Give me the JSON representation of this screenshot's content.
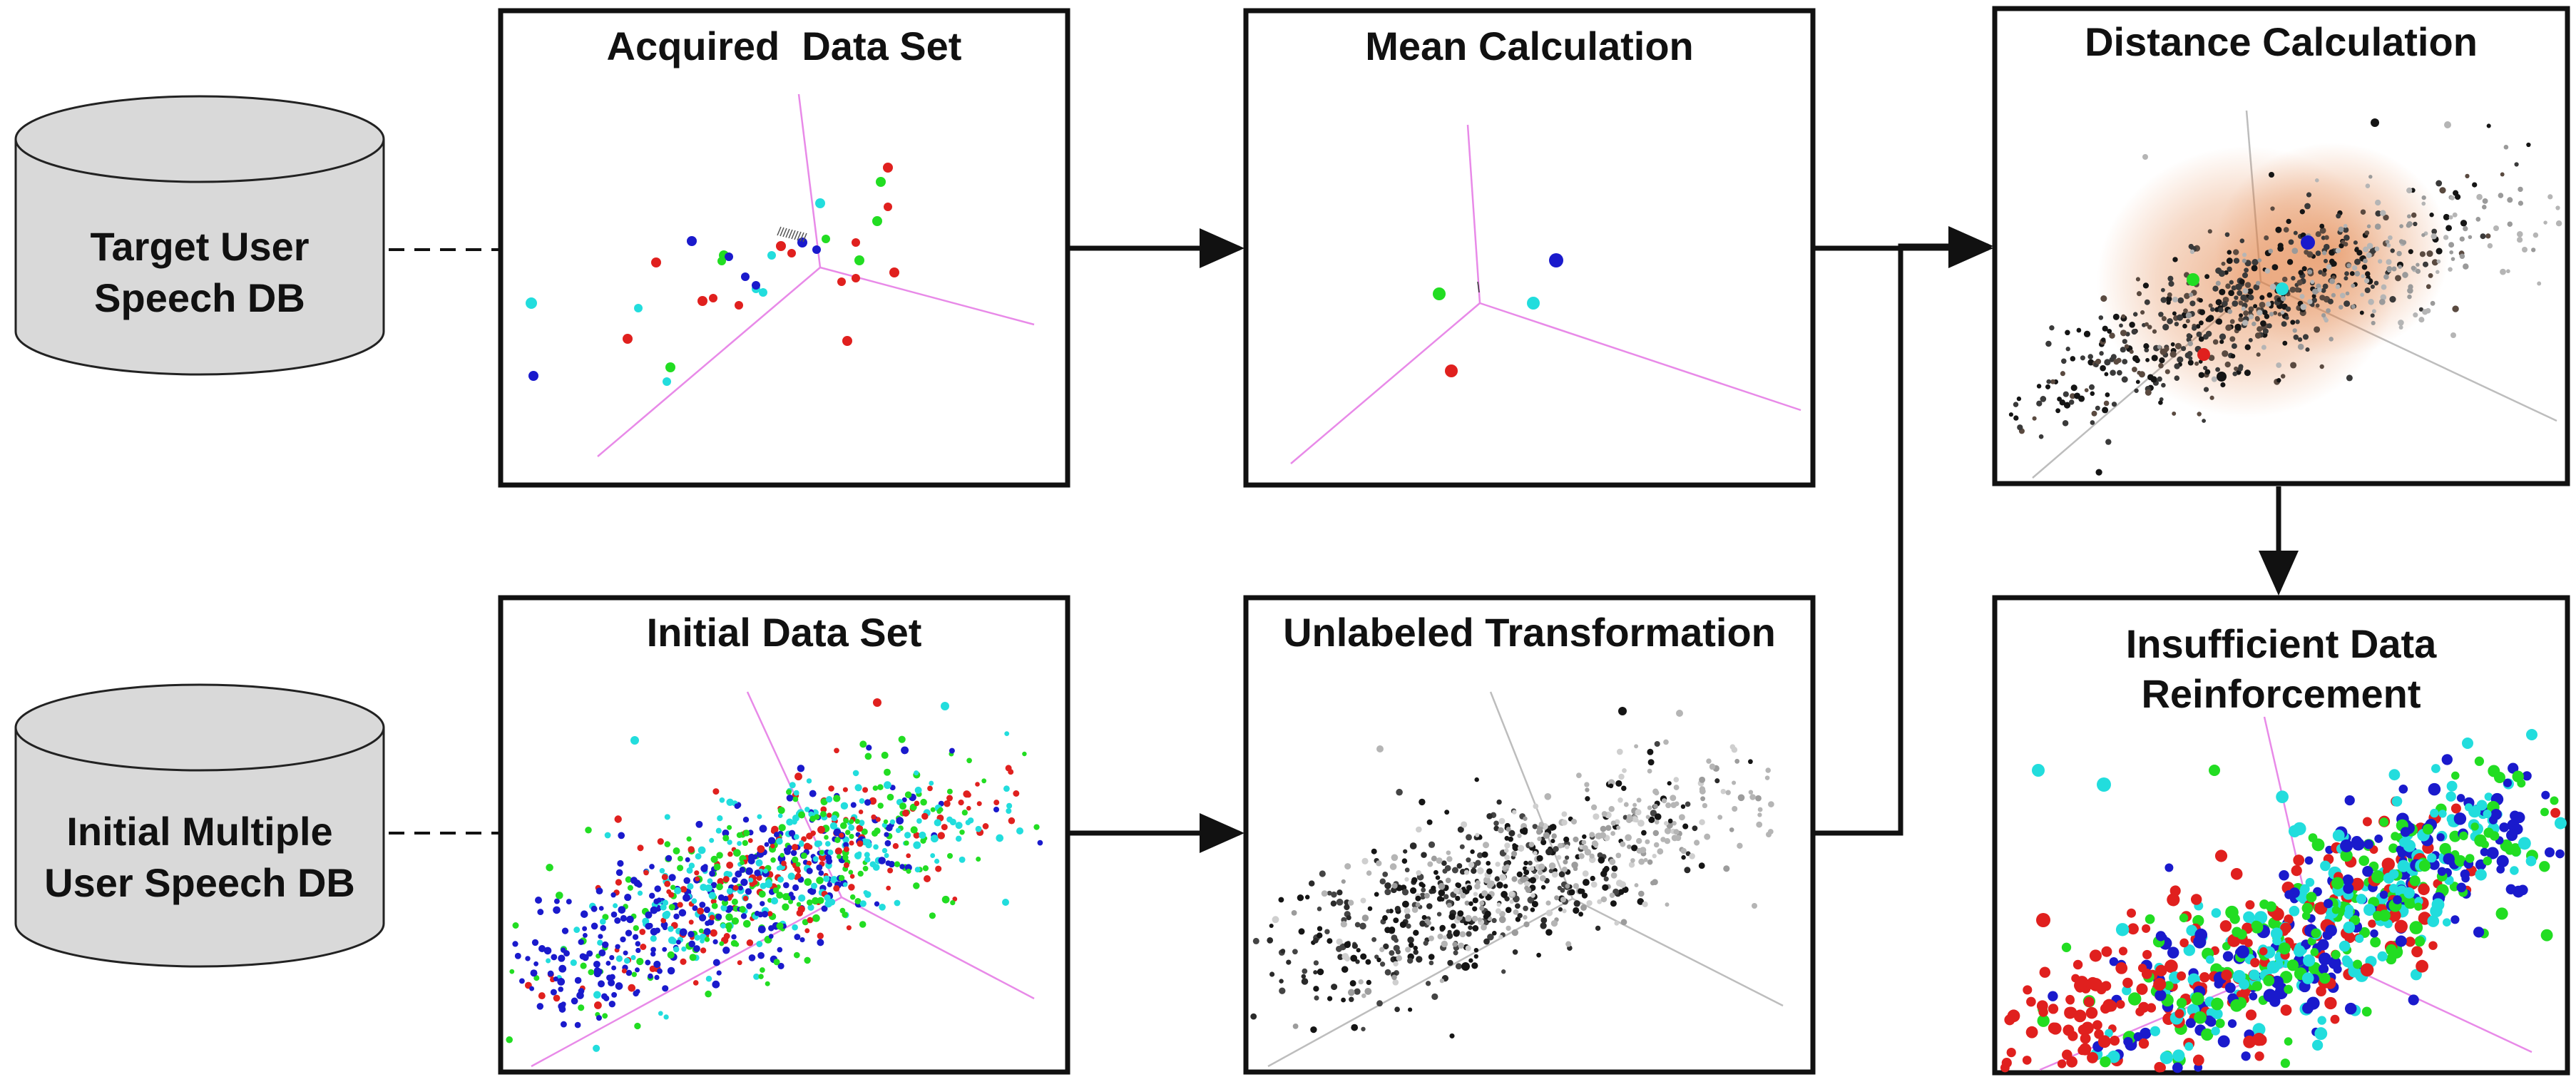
{
  "databases": [
    {
      "id": "target",
      "label_lines": [
        "Target User",
        "Speech DB"
      ]
    },
    {
      "id": "initial",
      "label_lines": [
        "Initial Multiple",
        "User Speech DB"
      ]
    }
  ],
  "panels": [
    {
      "id": "acquired",
      "title_lines": [
        "Acquired  Data Set"
      ]
    },
    {
      "id": "mean",
      "title_lines": [
        "Mean Calculation"
      ]
    },
    {
      "id": "distance",
      "title_lines": [
        "Distance Calculation"
      ]
    },
    {
      "id": "initialset",
      "title_lines": [
        "Initial Data Set"
      ]
    },
    {
      "id": "unlabeled",
      "title_lines": [
        "Unlabeled Transformation"
      ]
    },
    {
      "id": "reinforce",
      "title_lines": [
        "Insufficient Data",
        "Reinforcement"
      ]
    }
  ],
  "colors": {
    "red": "#e0201e",
    "green": "#22dd22",
    "blue": "#1a1acc",
    "cyan": "#22dddd",
    "black": "#151515",
    "gray": "#b5b5b5",
    "axis_magenta": "#e88ae8",
    "axis_gray": "#bdbdbd",
    "glow": "#e07a3a",
    "cylinder_fill": "#d9d9d9"
  }
}
